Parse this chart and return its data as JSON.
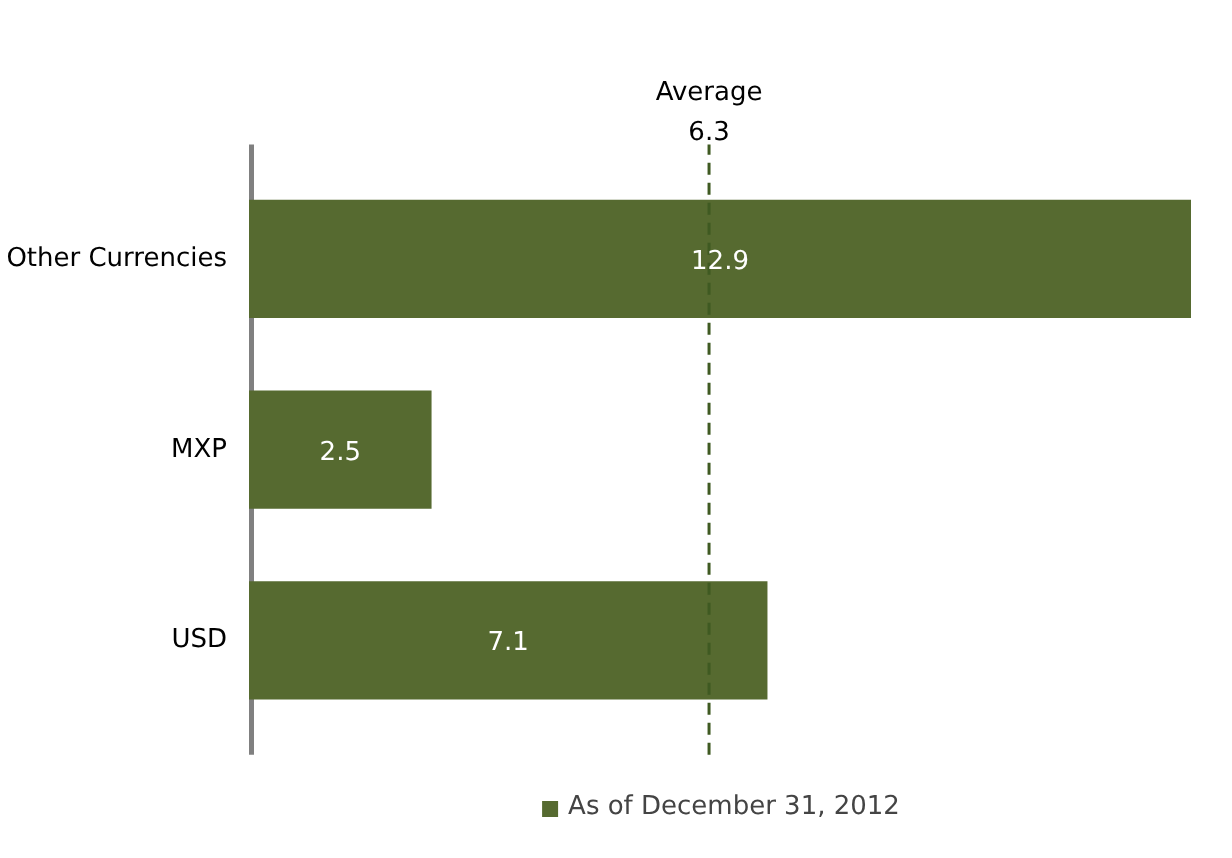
{
  "chart_data": {
    "type": "bar",
    "orientation": "horizontal",
    "categories": [
      "Other Currencies",
      "MXP",
      "USD"
    ],
    "series": [
      {
        "name": "As of December 31, 2012",
        "color": "#566a30",
        "values": [
          12.9,
          2.5,
          7.1
        ]
      }
    ],
    "xlim": [
      0,
      12.9
    ],
    "data_labels": true,
    "legend": "bottom",
    "grid": false,
    "ref_lines": [
      {
        "axis": "x",
        "value": 6.3,
        "label": "Average 6.3",
        "color": "#3f5a22",
        "line_style": "dashed"
      }
    ]
  }
}
